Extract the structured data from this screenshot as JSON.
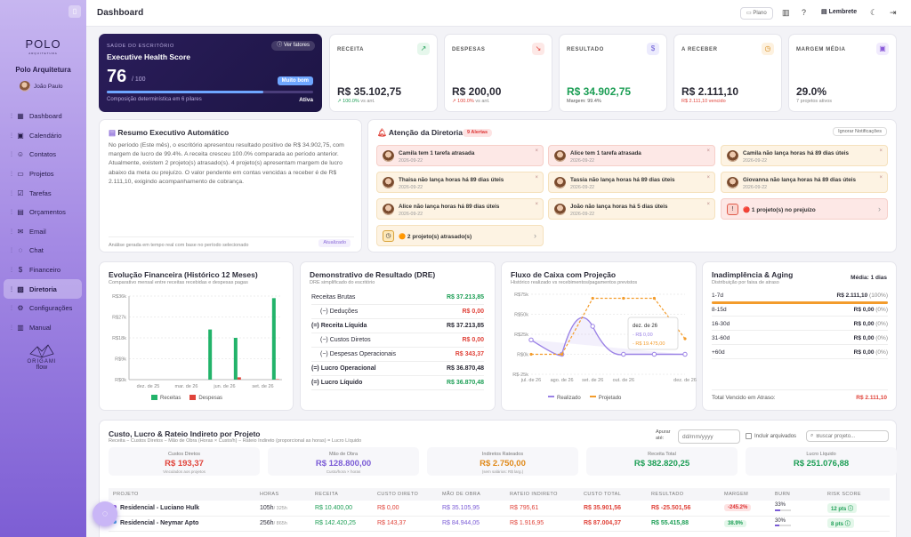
{
  "sidebar": {
    "toggle_icon": "sidebar-toggle-icon",
    "logo": "POLO",
    "logo_sub": "ARQUITETURA",
    "firm": "Polo Arquitetura",
    "user": "João Paulo",
    "items": [
      {
        "label": "Dashboard",
        "icon": "dashboard-icon",
        "glyph": "▦"
      },
      {
        "label": "Calendário",
        "icon": "calendar-icon",
        "glyph": "▣"
      },
      {
        "label": "Contatos",
        "icon": "contacts-icon",
        "glyph": "☺"
      },
      {
        "label": "Projetos",
        "icon": "folder-icon",
        "glyph": "▭"
      },
      {
        "label": "Tarefas",
        "icon": "tasks-icon",
        "glyph": "☑"
      },
      {
        "label": "Orçamentos",
        "icon": "budget-icon",
        "glyph": "▤"
      },
      {
        "label": "Email",
        "icon": "mail-icon",
        "glyph": "✉"
      },
      {
        "label": "Chat",
        "icon": "chat-icon",
        "glyph": "◌"
      },
      {
        "label": "Financeiro",
        "icon": "dollar-icon",
        "glyph": "$"
      },
      {
        "label": "Diretoria",
        "icon": "briefcase-icon",
        "glyph": "▧",
        "active": true
      },
      {
        "label": "Configurações",
        "icon": "gear-icon",
        "glyph": "⚙"
      },
      {
        "label": "Manual",
        "icon": "book-icon",
        "glyph": "▥"
      }
    ],
    "brand_line1": "ORIGAMI",
    "brand_line2": "flow"
  },
  "topbar": {
    "title": "Dashboard",
    "plano": "Plano",
    "lembrete": "Lembrete"
  },
  "health": {
    "label": "SAÚDE DO ESCRITÓRIO",
    "title": "Executive Health Score",
    "button": "Ver fatores",
    "score": "76",
    "of": "/ 100",
    "badge": "Muito bom",
    "progress": 0.76,
    "foot": "Composição determinística em 6 pilares",
    "status": "Ativa"
  },
  "kpis": [
    {
      "label": "RECEITA",
      "value": "R$ 35.102,75",
      "sub": "↗ 100.0%",
      "sub2": "vs ant.",
      "icon": "trend-up-icon",
      "glyph": "↗",
      "color": "#2a2a35",
      "subcolor": "#1c9e55",
      "bg": "#e6f7ec",
      "fg": "#1c9e55"
    },
    {
      "label": "DESPESAS",
      "value": "R$ 200,00",
      "sub": "↗ 100.0%",
      "sub2": "vs ant.",
      "icon": "trend-down-icon",
      "glyph": "↘",
      "color": "#2a2a35",
      "subcolor": "#e0433a",
      "bg": "#fde8e6",
      "fg": "#e0433a"
    },
    {
      "label": "RESULTADO",
      "value": "R$ 34.902,75",
      "sub": "Margem: 99.4%",
      "sub2": "",
      "icon": "dollar-icon",
      "glyph": "$",
      "color": "#1c9e55",
      "subcolor": "#555",
      "bg": "#ecebfd",
      "fg": "#6b5cd6"
    },
    {
      "label": "A RECEBER",
      "value": "R$ 2.111,10",
      "sub": "R$ 2.111,10 vencido",
      "sub2": "",
      "icon": "clock-icon",
      "glyph": "◷",
      "color": "#2a2a35",
      "subcolor": "#e0433a",
      "bg": "#fdf1df",
      "fg": "#d58a1a"
    },
    {
      "label": "MARGEM MÉDIA",
      "value": "29.0%",
      "sub": "7 projetos ativos",
      "sub2": "",
      "icon": "briefcase-icon",
      "glyph": "▣",
      "color": "#2a2a35",
      "subcolor": "#888",
      "bg": "#f1ebfd",
      "fg": "#8a5ad8"
    }
  ],
  "resumo": {
    "title": "Resumo Executivo Automático",
    "text": "No período (Este mês), o escritório apresentou resultado positivo de R$ 34.902,75, com margem de lucro de 99.4%. A receita cresceu 100.0% comparada ao período anterior. Atualmente, existem 2 projeto(s) atrasado(s). 4 projeto(s) apresentam margem de lucro abaixo da meta ou prejuízo. O valor pendente em contas vencidas a receber é de R$ 2.111,10, exigindo acompanhamento de cobrança.",
    "foot": "Análise gerada em tempo real com base no período selecionado",
    "badge": "Atualizado"
  },
  "atencao": {
    "title": "Atenção da Diretoria",
    "badge": "9 Alertas",
    "ignore": "Ignorar Notificações",
    "alerts": [
      {
        "text": "Camila tem 1 tarefa atrasada",
        "date": "2026-09-22",
        "type": "red"
      },
      {
        "text": "Alice tem 1 tarefa atrasada",
        "date": "2026-09-22",
        "type": "red"
      },
      {
        "text": "Camila não lança horas há 89 dias úteis",
        "date": "2026-09-22",
        "type": "warn"
      },
      {
        "text": "Thaisa não lança horas há 89 dias úteis",
        "date": "2026-09-22",
        "type": "warn"
      },
      {
        "text": "Tassia não lança horas há 89 dias úteis",
        "date": "2026-09-22",
        "type": "warn"
      },
      {
        "text": "Giovanna não lança horas há 89 dias úteis",
        "date": "2026-09-22",
        "type": "warn"
      },
      {
        "text": "Alice não lança horas há 89 dias úteis",
        "date": "2026-09-22",
        "type": "warn"
      },
      {
        "text": "João não lança horas há 5 dias úteis",
        "date": "2026-09-22",
        "type": "warn"
      }
    ],
    "summary_loss": "🔴 1 projeto(s) no prejuízo",
    "summary_late": "🟠 2 projeto(s) atrasado(s)"
  },
  "evolucao": {
    "title": "Evolução Financeira (Histórico 12 Meses)",
    "subtitle": "Comparativo mensal entre receitas recebidas e despesas pagas",
    "legend": [
      "Receitas",
      "Despesas"
    ]
  },
  "chart_data": [
    {
      "type": "bar",
      "title": "Evolução Financeira (Histórico 12 Meses)",
      "subtitle": "Comparativo mensal entre receitas recebidas e despesas pagas",
      "x_labels": [
        "dez. de 25",
        "mar. de 26",
        "jun. de 26",
        "set. de 26"
      ],
      "y_ticks": [
        "R$0k",
        "R$9k",
        "R$18k",
        "R$27k",
        "R$36k"
      ],
      "ylim": [
        0,
        36000
      ],
      "series": [
        {
          "name": "Receitas",
          "color": "#22b36a",
          "values": [
            0,
            0,
            0,
            0,
            0,
            0,
            21600,
            0,
            18000,
            0,
            0,
            35102.75
          ]
        },
        {
          "name": "Despesas",
          "color": "#e0433a",
          "values": [
            0,
            0,
            0,
            0,
            0,
            0,
            0,
            0,
            1000,
            0,
            0,
            200
          ]
        }
      ]
    },
    {
      "type": "line",
      "title": "Fluxo de Caixa com Projeção",
      "subtitle": "Histórico realizado vs recebimentos/pagamentos previstos",
      "x_labels": [
        "jul. de 26",
        "ago. de 26",
        "set. de 26",
        "out. de 26",
        "dez. de 26"
      ],
      "y_ticks": [
        "R$-25k",
        "R$0k",
        "R$25k",
        "R$50k",
        "R$75k"
      ],
      "ylim": [
        -25000,
        75000
      ],
      "series": [
        {
          "name": "Realizado",
          "color": "#9b82e6",
          "values": [
            18000,
            0,
            35000,
            0,
            0,
            0
          ]
        },
        {
          "name": "Projetado",
          "color": "#f39c2c",
          "values": [
            0,
            0,
            70000,
            70000,
            70000,
            19475
          ]
        }
      ],
      "tooltip": {
        "title": "dez. de 26",
        "line1": "- R$ 0,00",
        "line2": "- R$ 19.475,00"
      }
    }
  ],
  "dre": {
    "title": "Demonstrativo de Resultado (DRE)",
    "subtitle": "DRE simplificado do escritório",
    "rows": [
      {
        "label": "Receitas Brutas",
        "value": "R$ 37.213,85",
        "color": "#1c9e55",
        "bold": false,
        "indent": 0
      },
      {
        "label": "(−) Deduções",
        "value": "R$ 0,00",
        "color": "#e0433a",
        "bold": false,
        "indent": 1
      },
      {
        "label": "(=) Receita Líquida",
        "value": "R$ 37.213,85",
        "color": "#2a2a35",
        "bold": true,
        "indent": 0
      },
      {
        "label": "(−) Custos Diretos",
        "value": "R$ 0,00",
        "color": "#e0433a",
        "bold": false,
        "indent": 1
      },
      {
        "label": "(−) Despesas Operacionais",
        "value": "R$ 343,37",
        "color": "#e0433a",
        "bold": false,
        "indent": 1
      },
      {
        "label": "(=) Lucro Operacional",
        "value": "R$ 36.870,48",
        "color": "#2a2a35",
        "bold": true,
        "indent": 0
      },
      {
        "label": "(=) Lucro Líquido",
        "value": "R$ 36.870,48",
        "color": "#1c9e55",
        "bold": true,
        "indent": 0
      }
    ]
  },
  "fluxo": {
    "title": "Fluxo de Caixa com Projeção",
    "subtitle": "Histórico realizado vs recebimentos/pagamentos previstos",
    "legend": [
      "Realizado",
      "Projetado"
    ]
  },
  "aging": {
    "title": "Inadimplência & Aging",
    "subtitle": "Distribuição por faixa de atraso",
    "media": "Média: 1 dias",
    "rows": [
      {
        "label": "1-7d",
        "value": "R$ 2.111,10",
        "pct": "(100%)",
        "fill": 1
      },
      {
        "label": "8-15d",
        "value": "R$ 0,00",
        "pct": "(0%)",
        "fill": 0
      },
      {
        "label": "16-30d",
        "value": "R$ 0,00",
        "pct": "(0%)",
        "fill": 0
      },
      {
        "label": "31-60d",
        "value": "R$ 0,00",
        "pct": "(0%)",
        "fill": 0
      },
      {
        "label": "+60d",
        "value": "R$ 0,00",
        "pct": "(0%)",
        "fill": 0
      }
    ],
    "total_label": "Total Vencido em Atraso:",
    "total_value": "R$ 2.111,10"
  },
  "custo": {
    "title": "Custo, Lucro & Rateio Indireto por Projeto",
    "subtitle": "Receita − Custos Diretos − Mão de Obra (Horas × Custo/h) − Rateio Indireto (proporcional as horas) = Lucro Líquido",
    "ate_label": "Apurar até:",
    "date_placeholder": "dd/mm/yyyy",
    "archived_label": "Incluir arquivados",
    "search_placeholder": "Buscar projeto...",
    "summary": [
      {
        "label": "Custos Diretos",
        "value": "R$ 193,37",
        "sub": "Vinculados aos projetos",
        "color": "#e0433a"
      },
      {
        "label": "Mão de Obra",
        "value": "R$ 128.800,00",
        "sub": "Custo/hora × horas",
        "color": "#7b5cd6"
      },
      {
        "label": "Indiretos Rateados",
        "value": "R$ 2.750,00",
        "sub": "(sem salários: R$ larg.)",
        "color": "#e08a1a"
      },
      {
        "label": "Receita Total",
        "value": "R$ 382.820,25",
        "sub": "",
        "color": "#1c9e55"
      },
      {
        "label": "Lucro Líquido",
        "value": "R$ 251.076,88",
        "sub": "",
        "color": "#1c9e55"
      }
    ],
    "columns": [
      "PROJETO",
      "HORAS",
      "RECEITA",
      "CUSTO DIRETO",
      "MÃO DE OBRA",
      "RATEIO INDIRETO",
      "CUSTO TOTAL",
      "RESULTADO",
      "MARGEM",
      "BURN",
      "RISK SCORE"
    ],
    "rows": [
      {
        "dot": "#8a5ad8",
        "name": "Residencial - Luciano Hulk",
        "hours": "105h",
        "hours_total": "/ 325h",
        "receita": "R$ 10.400,00",
        "custo": "R$ 0,00",
        "mao": "R$ 35.105,95",
        "rateio": "R$ 795,61",
        "total": "R$ 35.901,56",
        "resultado": "R$ -25.501,56",
        "margem": "-245.2%",
        "margem_bg": "#fde3e3",
        "margem_fg": "#d33",
        "burn": "33%",
        "burn_fill": 0.33,
        "risk": "12 pts",
        "risk_bg": "#e4f7ea",
        "risk_fg": "#1c9e55"
      },
      {
        "dot": "#3aa0e0",
        "name": "Residencial - Neymar Apto",
        "hours": "256h",
        "hours_total": "/ 865h",
        "receita": "R$ 142.420,25",
        "custo": "R$ 143,37",
        "mao": "R$ 84.944,05",
        "rateio": "R$ 1.916,95",
        "total": "R$ 87.004,37",
        "resultado": "R$ 55.415,88",
        "margem": "38.9%",
        "margem_bg": "#e4f7ea",
        "margem_fg": "#1c9e55",
        "burn": "30%",
        "burn_fill": 0.3,
        "risk": "8 pts",
        "risk_bg": "#e4f7ea",
        "risk_fg": "#1c9e55"
      }
    ]
  }
}
